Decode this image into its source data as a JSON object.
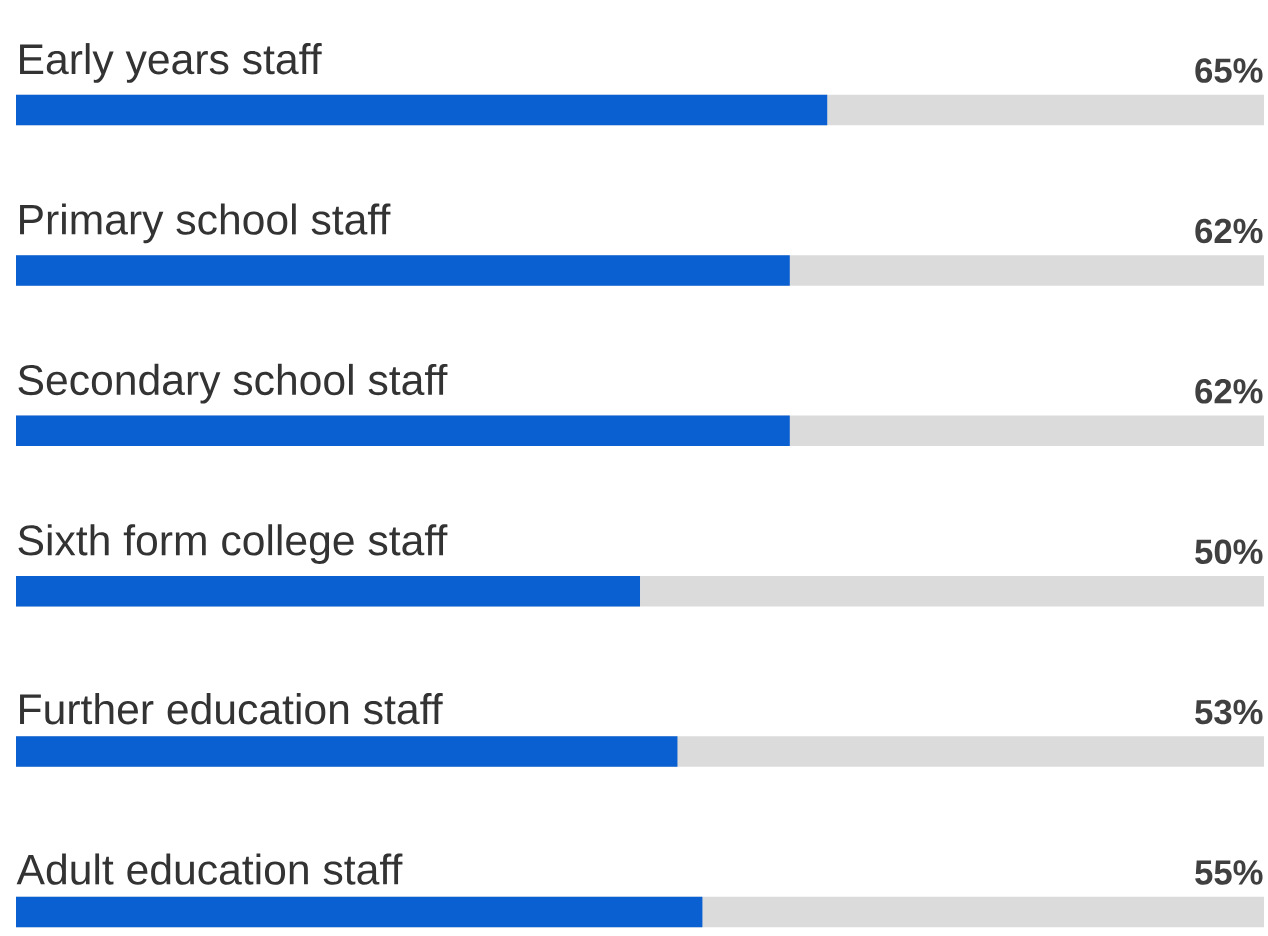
{
  "chart_data": {
    "type": "bar",
    "orientation": "horizontal",
    "tick_labels": false,
    "xlim": [
      0,
      100
    ],
    "categories": [
      "Early years staff",
      "Primary school staff",
      "Secondary school staff",
      "Sixth form college staff",
      "Further education staff",
      "Adult education staff"
    ],
    "series": [
      {
        "color": "#0a5fd1",
        "values": [
          65,
          62,
          62,
          50,
          53,
          55
        ],
        "value_labels": [
          "65%",
          "62%",
          "62%",
          "50%",
          "53%",
          "55%"
        ]
      }
    ]
  }
}
